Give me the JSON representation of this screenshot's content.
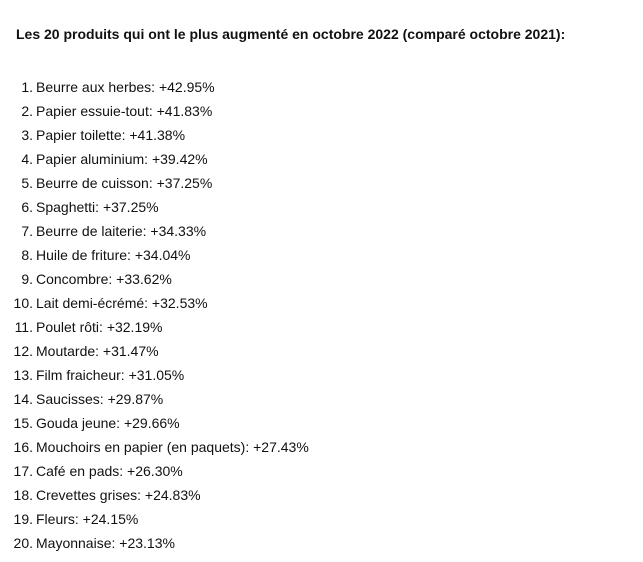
{
  "document": {
    "title": "Les 20 produits qui ont le plus augmenté en octobre 2022 (comparé octobre 2021):",
    "items": [
      {
        "number": "1.",
        "text": "Beurre aux herbes: +42.95%"
      },
      {
        "number": "2.",
        "text": "Papier essuie-tout: +41.83%"
      },
      {
        "number": "3.",
        "text": "Papier toilette: +41.38%"
      },
      {
        "number": "4.",
        "text": "Papier aluminium: +39.42%"
      },
      {
        "number": "5.",
        "text": "Beurre de cuisson: +37.25%"
      },
      {
        "number": "6.",
        "text": "Spaghetti: +37.25%"
      },
      {
        "number": "7.",
        "text": "Beurre de laiterie: +34.33%"
      },
      {
        "number": "8.",
        "text": "Huile de friture: +34.04%"
      },
      {
        "number": "9.",
        "text": "Concombre: +33.62%"
      },
      {
        "number": "10.",
        "text": "Lait demi-écrémé: +32.53%"
      },
      {
        "number": "11.",
        "text": "Poulet rôti: +32.19%"
      },
      {
        "number": "12.",
        "text": "Moutarde: +31.47%"
      },
      {
        "number": "13.",
        "text": "Film fraicheur: +31.05%"
      },
      {
        "number": "14.",
        "text": "Saucisses: +29.87%"
      },
      {
        "number": "15.",
        "text": "Gouda jeune: +29.66%"
      },
      {
        "number": "16.",
        "text": "Mouchoirs en papier (en paquets): +27.43%"
      },
      {
        "number": "17.",
        "text": "Café en pads: +26.30%"
      },
      {
        "number": "18.",
        "text": "Crevettes grises: +24.83%"
      },
      {
        "number": "19.",
        "text": "Fleurs: +24.15%"
      },
      {
        "number": "20.",
        "text": "Mayonnaise: +23.13%"
      }
    ]
  }
}
